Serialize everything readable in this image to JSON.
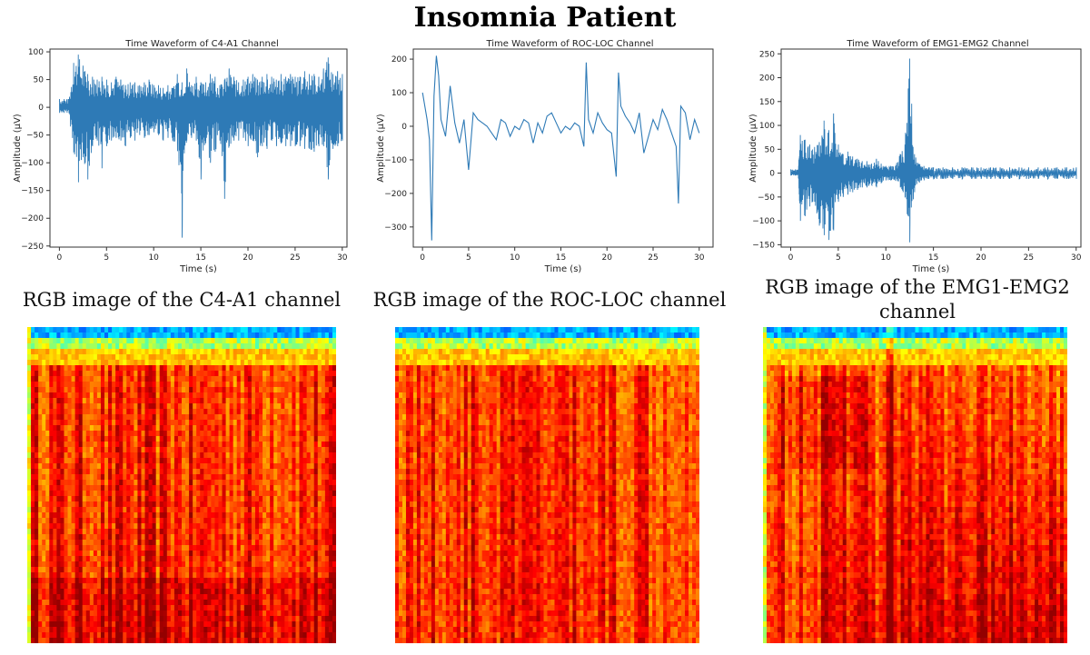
{
  "page_title": "Insomnia Patient",
  "chart_data": [
    {
      "type": "line",
      "title": "Time Waveform of C4-A1 Channel",
      "xlabel": "Time (s)",
      "ylabel": "Amplitude (µV)",
      "xlim": [
        -1,
        30.5
      ],
      "ylim": [
        -252,
        105
      ],
      "xticks": [
        0,
        5,
        10,
        15,
        20,
        25,
        30
      ],
      "yticks": [
        -250,
        -200,
        -150,
        -100,
        -50,
        0,
        50,
        100
      ],
      "color": "#2e7ab6",
      "series": [
        {
          "x": [
            0,
            0.5,
            1,
            1.5,
            2,
            2.5,
            3,
            3.5,
            4,
            4.5,
            5,
            5.5,
            6,
            6.5,
            7,
            7.5,
            8,
            8.5,
            9,
            9.5,
            10,
            10.5,
            11,
            11.5,
            12,
            12.5,
            13,
            13.5,
            14,
            14.5,
            15,
            15.5,
            16,
            16.5,
            17,
            17.5,
            18,
            18.5,
            19,
            19.5,
            20,
            20.5,
            21,
            21.5,
            22,
            22.5,
            23,
            23.5,
            24,
            24.5,
            25,
            25.5,
            26,
            26.5,
            27,
            27.5,
            28,
            28.5,
            29,
            29.5,
            30
          ],
          "max": [
            15,
            15,
            15,
            80,
            95,
            75,
            60,
            55,
            50,
            55,
            50,
            45,
            55,
            50,
            40,
            45,
            45,
            40,
            45,
            50,
            40,
            40,
            35,
            40,
            35,
            60,
            45,
            70,
            40,
            55,
            45,
            45,
            60,
            55,
            40,
            50,
            70,
            55,
            45,
            50,
            55,
            60,
            50,
            55,
            60,
            55,
            50,
            60,
            55,
            60,
            55,
            55,
            65,
            60,
            60,
            55,
            70,
            90,
            60,
            65,
            60
          ],
          "min": [
            -10,
            -10,
            -10,
            -80,
            -135,
            -90,
            -130,
            -70,
            -60,
            -110,
            -70,
            -60,
            -55,
            -60,
            -70,
            -55,
            -60,
            -50,
            -55,
            -50,
            -45,
            -50,
            -60,
            -55,
            -60,
            -70,
            -235,
            -60,
            -55,
            -60,
            -130,
            -65,
            -100,
            -80,
            -60,
            -165,
            -70,
            -60,
            -60,
            -55,
            -70,
            -60,
            -90,
            -70,
            -75,
            -60,
            -70,
            -65,
            -70,
            -70,
            -70,
            -70,
            -75,
            -75,
            -80,
            -70,
            -70,
            -130,
            -75,
            -70,
            -60
          ]
        }
      ]
    },
    {
      "type": "line",
      "title": "Time Waveform of ROC-LOC Channel",
      "xlabel": "Time (s)",
      "ylabel": "Amplitude (µV)",
      "xlim": [
        -1,
        31.5
      ],
      "ylim": [
        -360,
        230
      ],
      "xticks": [
        0,
        5,
        10,
        15,
        20,
        25,
        30
      ],
      "yticks": [
        -300,
        -200,
        -100,
        0,
        100,
        200
      ],
      "color": "#2e7ab6",
      "series": [
        {
          "x": [
            0,
            0.25,
            0.5,
            0.75,
            1,
            1.25,
            1.5,
            1.75,
            2,
            2.5,
            3,
            3.5,
            4,
            4.5,
            5,
            5.5,
            6,
            6.5,
            7,
            7.5,
            8,
            8.5,
            9,
            9.5,
            10,
            10.5,
            11,
            11.5,
            12,
            12.5,
            13,
            13.5,
            14,
            14.5,
            15,
            15.5,
            16,
            16.5,
            17,
            17.5,
            17.75,
            18,
            18.5,
            19,
            19.5,
            20,
            20.5,
            21,
            21.25,
            21.5,
            22,
            22.5,
            23,
            23.5,
            24,
            24.5,
            25,
            25.5,
            26,
            26.5,
            27,
            27.5,
            27.75,
            28,
            28.5,
            29,
            29.5,
            30
          ],
          "y": [
            100,
            60,
            20,
            -40,
            -340,
            90,
            210,
            150,
            20,
            -30,
            120,
            10,
            -50,
            20,
            -130,
            40,
            20,
            10,
            0,
            -20,
            -40,
            20,
            10,
            -30,
            0,
            -10,
            20,
            10,
            -50,
            10,
            -20,
            30,
            40,
            10,
            -20,
            0,
            -10,
            10,
            0,
            -60,
            190,
            20,
            -20,
            40,
            10,
            -10,
            -20,
            -150,
            160,
            60,
            30,
            10,
            -20,
            40,
            -80,
            -30,
            20,
            -10,
            50,
            20,
            -20,
            -60,
            -230,
            60,
            40,
            -40,
            20,
            -20
          ]
        }
      ]
    },
    {
      "type": "line",
      "title": "Time Waveform of EMG1-EMG2 Channel",
      "xlabel": "Time (s)",
      "ylabel": "Amplitude (µV)",
      "xlim": [
        -1,
        30.5
      ],
      "ylim": [
        -155,
        260
      ],
      "xticks": [
        0,
        5,
        10,
        15,
        20,
        25,
        30
      ],
      "yticks": [
        -150,
        -100,
        -50,
        0,
        50,
        100,
        150,
        200,
        250
      ],
      "color": "#2e7ab6",
      "series": [
        {
          "x": [
            0,
            0.5,
            0.8,
            1,
            1.5,
            2,
            2.5,
            3,
            3.5,
            4,
            4.5,
            5,
            5.5,
            6,
            6.5,
            7,
            7.5,
            8,
            8.5,
            9,
            9.5,
            10,
            10.5,
            11,
            11.5,
            12,
            12.5,
            13,
            13.5,
            14,
            14.5,
            15,
            16,
            17,
            18,
            19,
            20,
            21,
            22,
            23,
            24,
            25,
            26,
            27,
            28,
            29,
            30
          ],
          "max": [
            8,
            8,
            8,
            80,
            70,
            60,
            55,
            65,
            110,
            90,
            125,
            60,
            40,
            45,
            35,
            30,
            25,
            25,
            20,
            30,
            20,
            15,
            15,
            15,
            40,
            60,
            240,
            40,
            20,
            15,
            12,
            12,
            12,
            12,
            12,
            12,
            12,
            12,
            12,
            12,
            12,
            12,
            12,
            12,
            12,
            12,
            12
          ],
          "min": [
            -5,
            -5,
            -5,
            -100,
            -90,
            -70,
            -60,
            -110,
            -130,
            -140,
            -120,
            -60,
            -50,
            -45,
            -40,
            -35,
            -30,
            -30,
            -25,
            -30,
            -20,
            -15,
            -15,
            -15,
            -30,
            -50,
            -145,
            -40,
            -20,
            -15,
            -12,
            -12,
            -12,
            -12,
            -12,
            -12,
            -12,
            -12,
            -12,
            -12,
            -12,
            -12,
            -12,
            -12,
            -12,
            -12,
            -12
          ]
        }
      ]
    }
  ],
  "captions": [
    "RGB image of the C4-A1 channel",
    "RGB image of the ROC-LOC channel",
    "RGB image of the EMG1-EMG2 channel"
  ]
}
